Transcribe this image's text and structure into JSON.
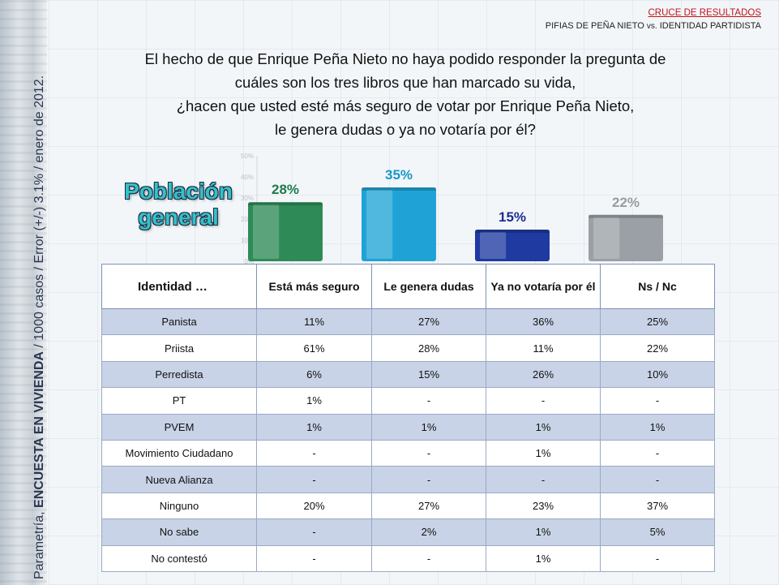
{
  "header": {
    "title": "CRUCE DE RESULTADOS",
    "subtitle_a": "PIFIAS DE PEÑA NIETO ",
    "subtitle_vs": "vs.",
    "subtitle_b": " IDENTIDAD PARTIDISTA"
  },
  "question": {
    "lines": [
      "El hecho de que Enrique Peña Nieto no haya podido responder la pregunta de",
      "cuáles son los tres libros que han marcado su vida,",
      "¿hacen que usted esté más seguro de votar por Enrique Peña Nieto,",
      "le genera dudas o ya no votaría por él?"
    ]
  },
  "side_credit": {
    "pre": "Parametría, ",
    "bold": "ENCUESTA EN VIVIENDA",
    "post": " / 1000 casos / Error (+/-) 3.1% / enero de 2012."
  },
  "population_label": [
    "Población",
    "general"
  ],
  "chart_data": {
    "type": "bar",
    "categories": [
      "Está más seguro",
      "Le genera dudas",
      "Ya no votaría por él",
      "Ns / Nc"
    ],
    "values": [
      28,
      35,
      15,
      22
    ],
    "data_labels": [
      "28%",
      "35%",
      "15%",
      "22%"
    ],
    "ylim": [
      0,
      50
    ],
    "y_ticks": [
      "0%",
      "10%",
      "20%",
      "30%",
      "40%",
      "50%"
    ],
    "colors": [
      "#2e8b57",
      "#1fa3d6",
      "#1f3aa0",
      "#9aa0a6"
    ],
    "label_colors": [
      "#1e7a4a",
      "#1897c8",
      "#1a2f90",
      "#9b9b9b"
    ]
  },
  "table": {
    "headers": [
      "Identidad …",
      "Está más seguro",
      "Le genera dudas",
      "Ya no votaría por él",
      "Ns / Nc"
    ],
    "rows": [
      [
        "Panista",
        "11%",
        "27%",
        "36%",
        "25%"
      ],
      [
        "Priista",
        "61%",
        "28%",
        "11%",
        "22%"
      ],
      [
        "Perredista",
        "6%",
        "15%",
        "26%",
        "10%"
      ],
      [
        "PT",
        "1%",
        "-",
        "-",
        "-"
      ],
      [
        "PVEM",
        "1%",
        "1%",
        "1%",
        "1%"
      ],
      [
        "Movimiento Ciudadano",
        "-",
        "-",
        "1%",
        "-"
      ],
      [
        "Nueva Alianza",
        "-",
        "-",
        "-",
        "-"
      ],
      [
        "Ninguno",
        "20%",
        "27%",
        "23%",
        "37%"
      ],
      [
        "No sabe",
        "-",
        "2%",
        "1%",
        "5%"
      ],
      [
        "No contestó",
        "-",
        "-",
        "1%",
        "-"
      ]
    ]
  }
}
